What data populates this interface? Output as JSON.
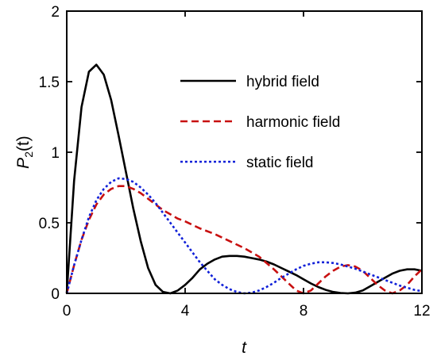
{
  "chart_data": {
    "type": "line",
    "xlabel": "t",
    "ylabel": {
      "main": "P",
      "sub": "2",
      "tail": "(t)"
    },
    "xlim": [
      0,
      12
    ],
    "ylim": [
      0,
      2
    ],
    "xticks": [
      0,
      4,
      8,
      12
    ],
    "yticks": [
      0,
      0.5,
      1,
      1.5,
      2
    ],
    "xtick_labels": [
      "0",
      "4",
      "8",
      "12"
    ],
    "ytick_labels": [
      "0",
      "0.5",
      "1",
      "1.5",
      "2"
    ],
    "grid": false,
    "legend_position": "top-right",
    "series": [
      {
        "name": "hybrid field",
        "color": "#000000",
        "style": "solid",
        "x": [
          0,
          0.25,
          0.5,
          0.75,
          1.0,
          1.25,
          1.5,
          1.75,
          2.0,
          2.25,
          2.5,
          2.75,
          3.0,
          3.25,
          3.5,
          3.75,
          4.0,
          4.25,
          4.5,
          4.75,
          5.0,
          5.25,
          5.5,
          5.75,
          6.0,
          6.25,
          6.5,
          6.75,
          7.0,
          7.25,
          7.5,
          7.75,
          8.0,
          8.25,
          8.5,
          8.75,
          9.0,
          9.25,
          9.5,
          9.75,
          10.0,
          10.25,
          10.5,
          10.75,
          11.0,
          11.25,
          11.5,
          11.75,
          12.0
        ],
        "y": [
          0,
          0.8,
          1.32,
          1.57,
          1.62,
          1.55,
          1.37,
          1.12,
          0.86,
          0.6,
          0.37,
          0.18,
          0.06,
          0.01,
          0.0,
          0.02,
          0.06,
          0.11,
          0.17,
          0.21,
          0.24,
          0.26,
          0.265,
          0.265,
          0.26,
          0.25,
          0.24,
          0.225,
          0.205,
          0.18,
          0.155,
          0.13,
          0.1,
          0.07,
          0.045,
          0.025,
          0.01,
          0.003,
          0.0,
          0.005,
          0.02,
          0.05,
          0.08,
          0.11,
          0.14,
          0.16,
          0.17,
          0.17,
          0.16
        ]
      },
      {
        "name": "harmonic field",
        "color": "#c81010",
        "style": "dashed",
        "x": [
          0,
          0.25,
          0.5,
          0.75,
          1.0,
          1.25,
          1.5,
          1.75,
          2.0,
          2.25,
          2.5,
          2.75,
          3.0,
          3.25,
          3.5,
          3.75,
          4.0,
          4.5,
          5.0,
          5.5,
          6.0,
          6.5,
          7.0,
          7.25,
          7.5,
          7.75,
          8.0,
          8.25,
          8.5,
          8.75,
          9.0,
          9.25,
          9.5,
          9.75,
          10.0,
          10.25,
          10.5,
          10.75,
          11.0,
          11.25,
          11.5,
          11.75,
          12.0
        ],
        "y": [
          0,
          0.2,
          0.38,
          0.52,
          0.63,
          0.7,
          0.74,
          0.76,
          0.76,
          0.74,
          0.71,
          0.67,
          0.63,
          0.59,
          0.56,
          0.53,
          0.51,
          0.46,
          0.42,
          0.37,
          0.32,
          0.26,
          0.17,
          0.12,
          0.07,
          0.02,
          0.0,
          0.02,
          0.07,
          0.12,
          0.16,
          0.19,
          0.2,
          0.19,
          0.16,
          0.11,
          0.06,
          0.02,
          0.0,
          0.02,
          0.06,
          0.12,
          0.17
        ]
      },
      {
        "name": "static field",
        "color": "#1020d8",
        "style": "dotted",
        "x": [
          0,
          0.25,
          0.5,
          0.75,
          1.0,
          1.25,
          1.5,
          1.75,
          2.0,
          2.25,
          2.5,
          2.75,
          3.0,
          3.25,
          3.5,
          3.75,
          4.0,
          4.25,
          4.5,
          4.75,
          5.0,
          5.25,
          5.5,
          5.75,
          6.0,
          6.25,
          6.5,
          6.75,
          7.0,
          7.25,
          7.5,
          7.75,
          8.0,
          8.25,
          8.5,
          8.75,
          9.0,
          9.25,
          9.5,
          9.75,
          10.0,
          10.25,
          10.5,
          10.75,
          11.0,
          11.25,
          11.5,
          11.75,
          12.0
        ],
        "y": [
          0,
          0.2,
          0.38,
          0.54,
          0.66,
          0.74,
          0.79,
          0.815,
          0.81,
          0.79,
          0.75,
          0.7,
          0.64,
          0.57,
          0.5,
          0.43,
          0.36,
          0.29,
          0.22,
          0.16,
          0.1,
          0.06,
          0.03,
          0.01,
          0.0,
          0.005,
          0.02,
          0.045,
          0.075,
          0.11,
          0.14,
          0.17,
          0.195,
          0.21,
          0.22,
          0.22,
          0.215,
          0.205,
          0.19,
          0.175,
          0.155,
          0.135,
          0.115,
          0.095,
          0.075,
          0.055,
          0.04,
          0.025,
          0.015
        ]
      }
    ]
  }
}
